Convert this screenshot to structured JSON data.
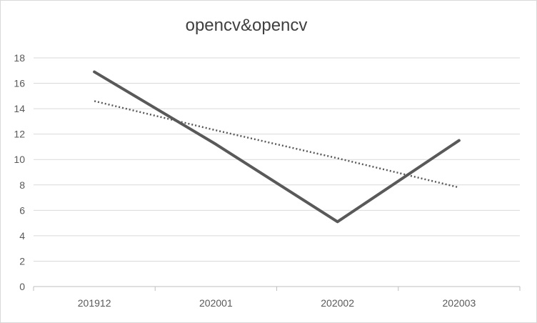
{
  "chart_data": {
    "type": "line",
    "title": "opencv&opencv",
    "xlabel": "",
    "ylabel": "",
    "categories": [
      "201912",
      "202001",
      "202002",
      "202003"
    ],
    "series": [
      {
        "values": [
          16.9,
          11.2,
          5.1,
          11.5
        ],
        "color": "#595959",
        "style": "solid"
      },
      {
        "trendline": "linear",
        "values": [
          14.6,
          12.3,
          10.1,
          7.8
        ],
        "color": "#595959",
        "style": "dotted"
      }
    ],
    "ylim": [
      0,
      18
    ],
    "yticks": [
      0,
      2,
      4,
      6,
      8,
      10,
      12,
      14,
      16,
      18
    ],
    "grid": true,
    "legend": "none"
  }
}
